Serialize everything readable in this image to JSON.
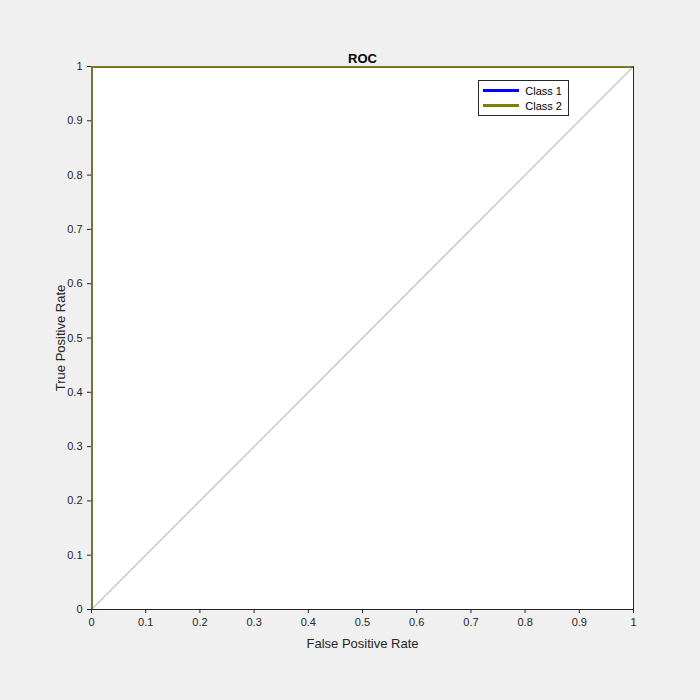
{
  "chart_data": {
    "type": "line",
    "title": "ROC",
    "xlabel": "False Positive Rate",
    "ylabel": "True Positive Rate",
    "x": [
      0,
      0,
      1
    ],
    "series": [
      {
        "name": "Class 1",
        "color": "#0000ff",
        "values": [
          0,
          1,
          1
        ]
      },
      {
        "name": "Class 2",
        "color": "#808000",
        "values": [
          0,
          1,
          1
        ]
      }
    ],
    "xlim": [
      0,
      1
    ],
    "ylim": [
      0,
      1
    ],
    "xticks": [
      0,
      0.1,
      0.2,
      0.3,
      0.4,
      0.5,
      0.6,
      0.7,
      0.8,
      0.9,
      1
    ],
    "yticks": [
      0,
      0.1,
      0.2,
      0.3,
      0.4,
      0.5,
      0.6,
      0.7,
      0.8,
      0.9,
      1
    ],
    "grid": false,
    "legend": "northeast"
  }
}
